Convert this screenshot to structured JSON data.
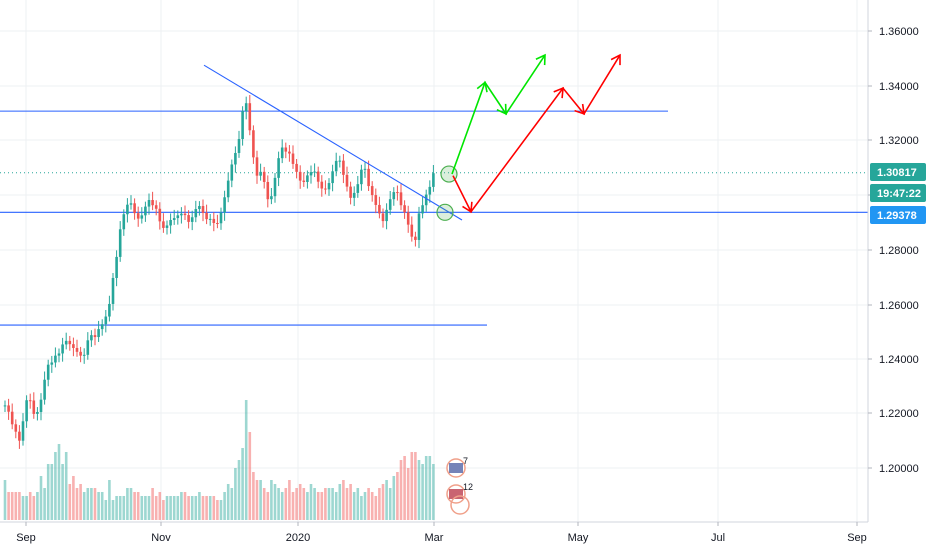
{
  "chart_data": {
    "type": "candlestick",
    "y_range": [
      1.188,
      1.372
    ],
    "y_ticks": [
      "1.36000",
      "1.34000",
      "1.32000",
      "1.30000",
      "1.28000",
      "1.26000",
      "1.24000",
      "1.22000",
      "1.20000"
    ],
    "x_labels": [
      "Sep",
      "Nov",
      "2020",
      "Mar",
      "May",
      "Jul",
      "Sep"
    ],
    "price_badges": [
      {
        "text": "1.30817",
        "value": 1.30817,
        "color": "#26a69a"
      },
      {
        "text": "19:47:22",
        "value": 1.30385,
        "color": "#26a69a"
      },
      {
        "text": "1.29378",
        "value": 1.29378,
        "color": "#2196f3"
      }
    ],
    "horizontal_levels": [
      1.3307,
      1.2937,
      1.2525
    ],
    "trendline": [
      [
        1.3475
      ],
      [
        1.2909
      ]
    ],
    "up_path": [
      1.3077,
      1.3412,
      1.3297,
      1.3512
    ],
    "down_path": [
      1.3071,
      1.2939,
      1.3391,
      1.3297,
      1.3512
    ],
    "candles": [
      1.2231,
      1.2208,
      1.2162,
      1.2135,
      1.2102,
      1.2173,
      1.225,
      1.2249,
      1.22,
      1.2207,
      1.2252,
      1.2325,
      1.238,
      1.2388,
      1.2413,
      1.2421,
      1.2454,
      1.2467,
      1.2455,
      1.2441,
      1.2427,
      1.2413,
      1.2416,
      1.2469,
      1.2488,
      1.2481,
      1.251,
      1.2528,
      1.2556,
      1.2602,
      1.2697,
      1.2774,
      1.2875,
      1.293,
      1.2965,
      1.297,
      1.2934,
      1.2914,
      1.2926,
      1.2958,
      1.2982,
      1.2963,
      1.295,
      1.2904,
      1.288,
      1.2889,
      1.2909,
      1.2916,
      1.2926,
      1.2932,
      1.2927,
      1.2902,
      1.2919,
      1.2949,
      1.296,
      1.2935,
      1.2912,
      1.2913,
      1.2898,
      1.2897,
      1.2936,
      1.2992,
      1.3053,
      1.3112,
      1.3154,
      1.3205,
      1.3307,
      1.3336,
      1.3237,
      1.3138,
      1.3071,
      1.3085,
      1.3048,
      1.2985,
      1.2996,
      1.3063,
      1.3135,
      1.3174,
      1.3159,
      1.3152,
      1.3114,
      1.3085,
      1.3053,
      1.3048,
      1.3072,
      1.3084,
      1.3086,
      1.3049,
      1.3024,
      1.3021,
      1.3044,
      1.3087,
      1.3125,
      1.3126,
      1.3074,
      1.3031,
      1.299,
      1.3008,
      1.304,
      1.3093,
      1.3096,
      1.3033,
      1.3,
      1.2964,
      1.2933,
      1.2905,
      1.2946,
      1.2985,
      1.3011,
      1.301,
      1.2963,
      1.2937,
      1.2892,
      1.2848,
      1.2836,
      1.2933,
      1.2963,
      1.3002,
      1.303,
      1.308
    ],
    "volumes": [
      10,
      7,
      7,
      7,
      7,
      6,
      6,
      7,
      6,
      7,
      11,
      8,
      14,
      14,
      17,
      19,
      14,
      17,
      9,
      11,
      8,
      9,
      7,
      8,
      8,
      8,
      7,
      7,
      5,
      10,
      5,
      6,
      6,
      6,
      8,
      8,
      7,
      7,
      6,
      6,
      6,
      8,
      6,
      7,
      5,
      6,
      6,
      6,
      6,
      7,
      7,
      6,
      6,
      6,
      7,
      6,
      6,
      6,
      6,
      5,
      5,
      7,
      9,
      8,
      13,
      15,
      18,
      30,
      22,
      12,
      10,
      10,
      8,
      7,
      10,
      9,
      8,
      7,
      8,
      10,
      7,
      8,
      9,
      8,
      7,
      9,
      8,
      7,
      7,
      8,
      8,
      8,
      7,
      9,
      10,
      8,
      9,
      7,
      8,
      6,
      7,
      8,
      7,
      6,
      8,
      9,
      10,
      8,
      11,
      12,
      15,
      16,
      13,
      17,
      17,
      15,
      14,
      16,
      16,
      14
    ],
    "events": [
      {
        "label": "7",
        "flag": "uk-flag-icon"
      },
      {
        "label": "12",
        "flag": "us-flag-icon"
      }
    ],
    "colors": {
      "up": "#26a69a",
      "down": "#ef5350",
      "level": "#2962ff",
      "trend": "#2962ff",
      "up_path": "#00e600",
      "down_path": "#ff0000",
      "circle": "#4caf50"
    }
  }
}
